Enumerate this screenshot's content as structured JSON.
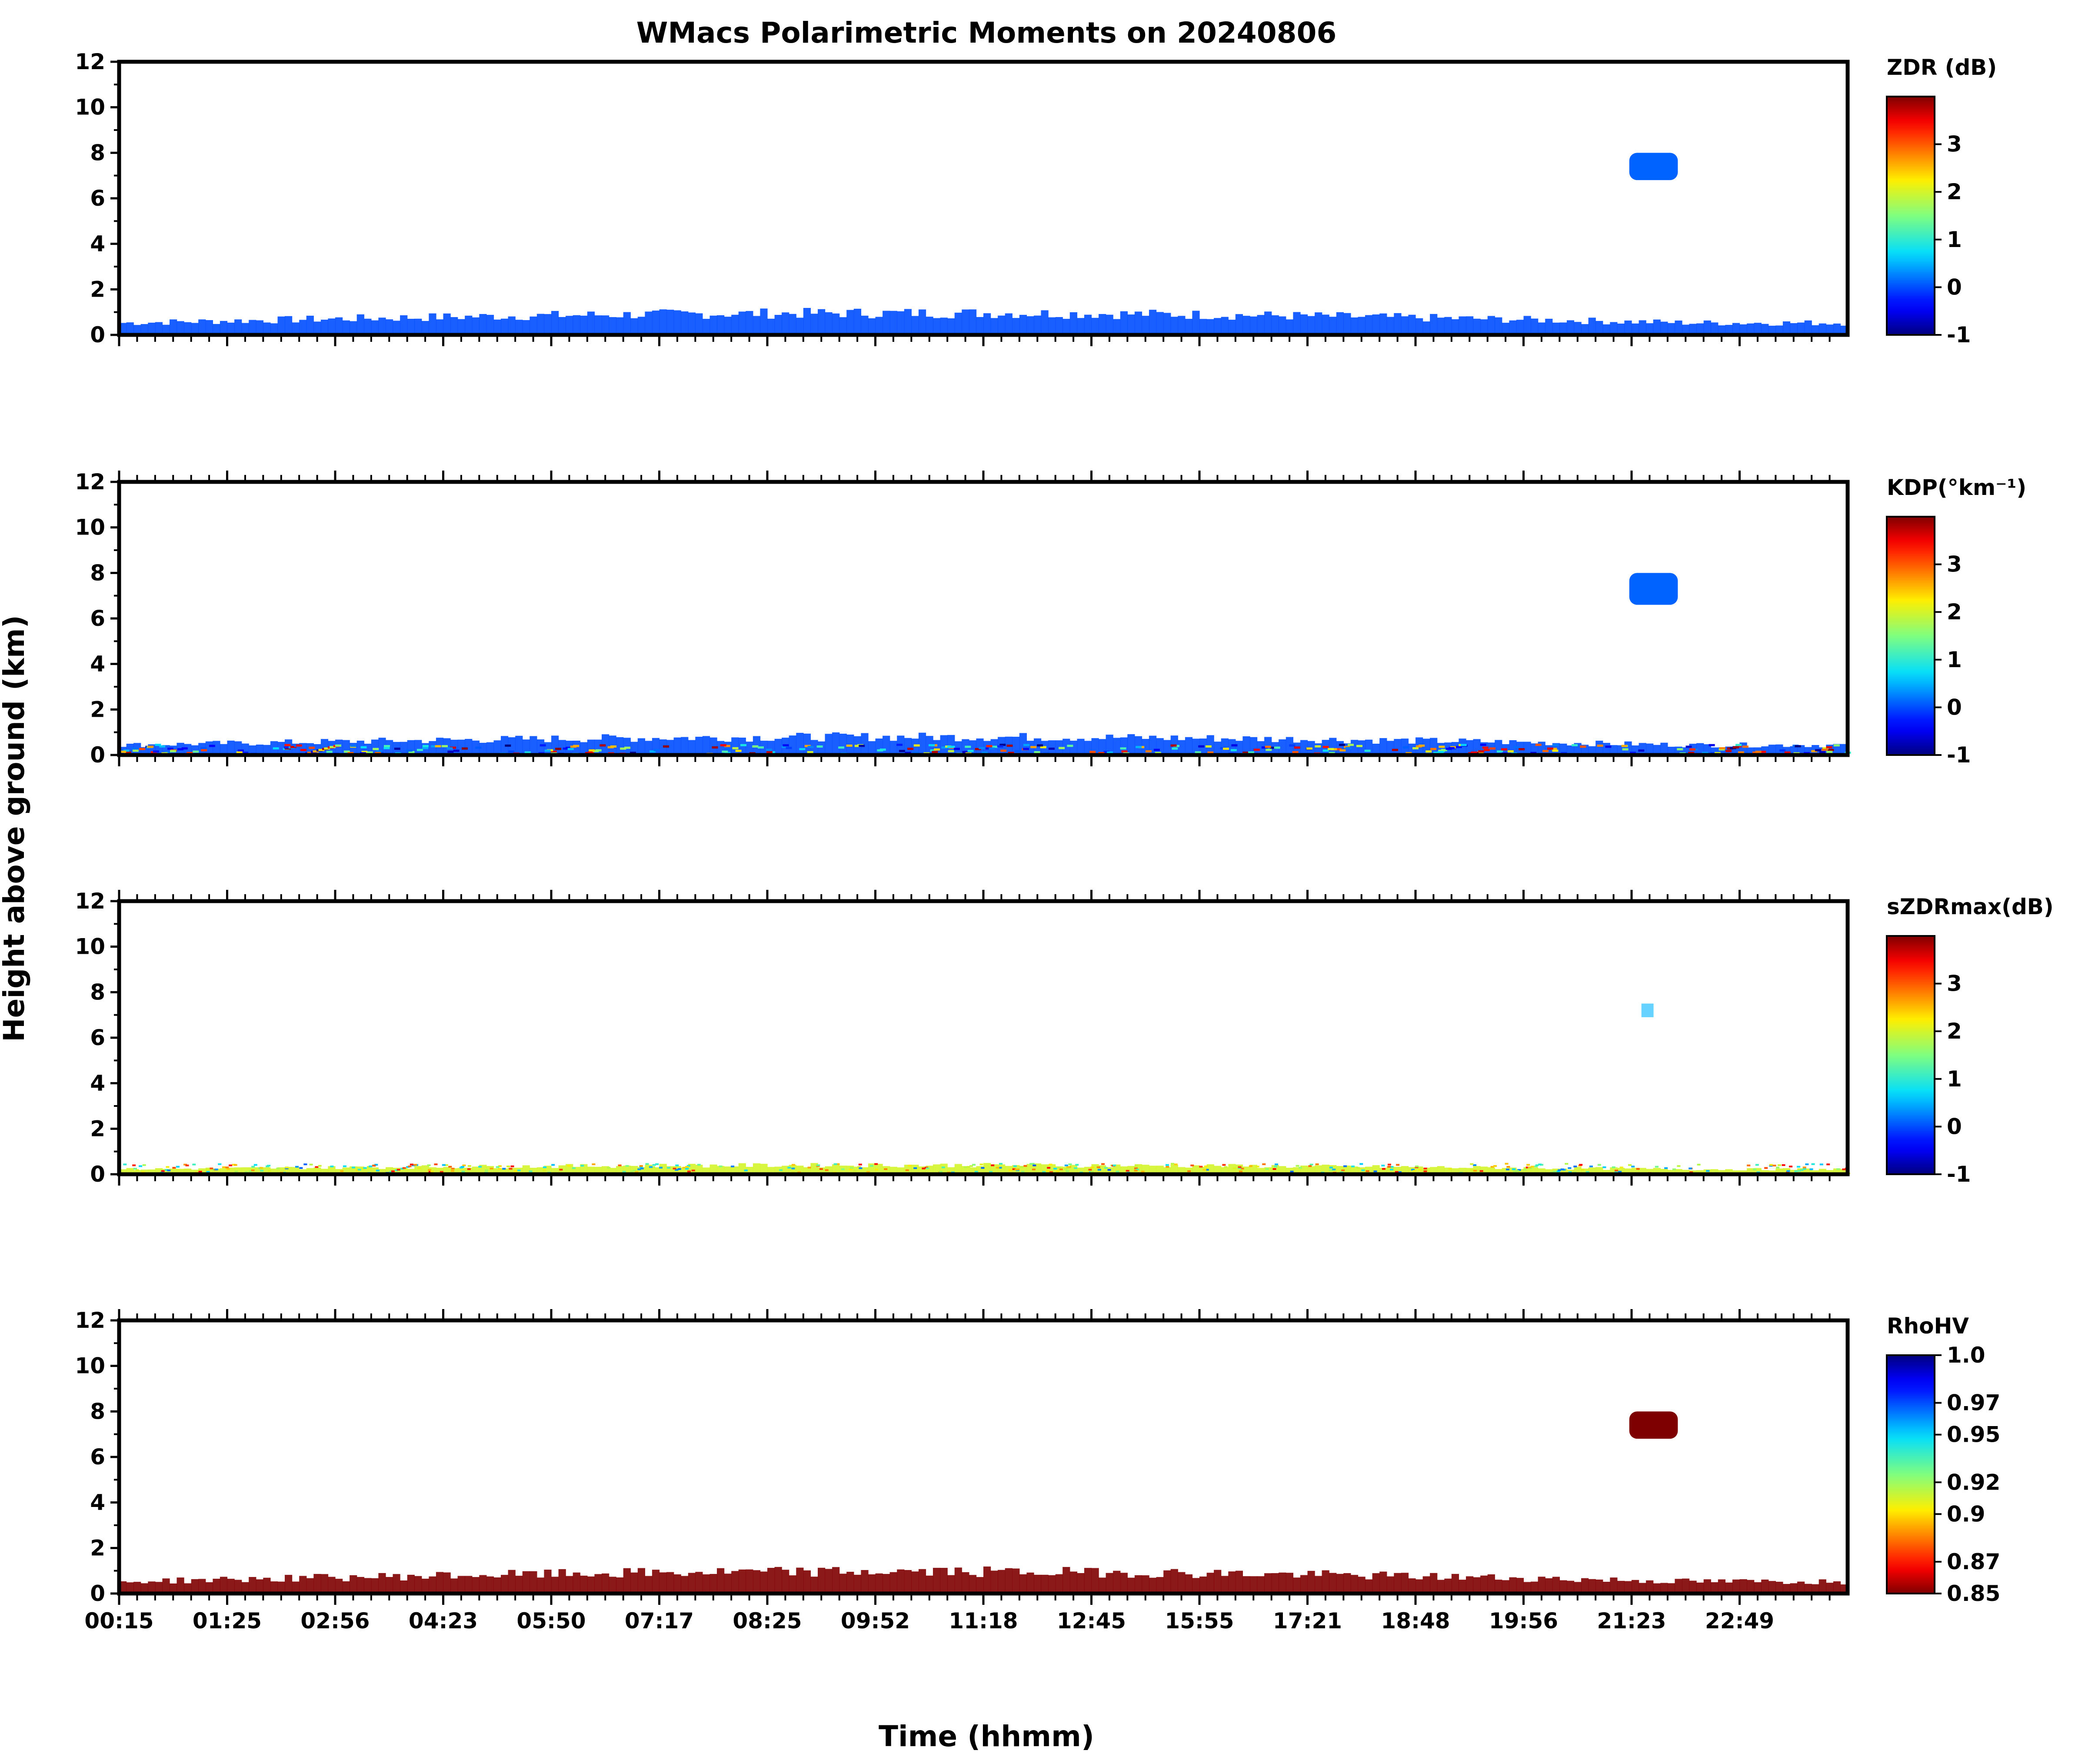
{
  "chart_data": {
    "type": "heatmap",
    "title": "WMacs Polarimetric Moments on 20240806",
    "xlabel": "Time (hhmm)",
    "ylabel": "Height above ground (km)",
    "ylim": [
      0,
      12
    ],
    "yticks": [
      "0",
      "2",
      "4",
      "6",
      "8",
      "10",
      "12"
    ],
    "xticks": [
      "00:15",
      "01:25",
      "02:56",
      "04:23",
      "05:50",
      "07:17",
      "08:25",
      "09:52",
      "11:18",
      "12:45",
      "15:55",
      "17:21",
      "18:48",
      "19:56",
      "21:23",
      "22:49"
    ],
    "panels": [
      {
        "name": "zdr",
        "colorbar_label": "ZDR (dB)",
        "colorbar_ticks": [
          "-1",
          "0",
          "1",
          "2",
          "3"
        ],
        "colorbar_range": [
          -1,
          4
        ],
        "colormap": "jet",
        "features": [
          {
            "kind": "low-layer",
            "height_top_km": 1.2,
            "value": 0.0
          },
          {
            "kind": "cloud",
            "time_range": [
              "21:00",
              "21:40"
            ],
            "height_range_km": [
              6.8,
              8.0
            ],
            "value": 0.1
          }
        ]
      },
      {
        "name": "kdp",
        "colorbar_label": "KDP(°km⁻¹)",
        "colorbar_ticks": [
          "-1",
          "0",
          "1",
          "2",
          "3"
        ],
        "colorbar_range": [
          -1,
          4
        ],
        "colormap": "jet",
        "features": [
          {
            "kind": "low-layer",
            "height_top_km": 1.0,
            "value": 0.0
          },
          {
            "kind": "cloud",
            "time_range": [
              "21:00",
              "21:40"
            ],
            "height_range_km": [
              6.6,
              8.0
            ],
            "value": 0.1
          }
        ]
      },
      {
        "name": "szdrmax",
        "colorbar_label": "sZDRmax(dB)",
        "colorbar_ticks": [
          "-1",
          "0",
          "1",
          "2",
          "3"
        ],
        "colorbar_range": [
          -1,
          4
        ],
        "colormap": "jet",
        "features": [
          {
            "kind": "low-layer",
            "height_top_km": 0.5,
            "value": 2.0
          },
          {
            "kind": "speck",
            "time_range": [
              "21:10",
              "21:20"
            ],
            "height_range_km": [
              6.9,
              7.5
            ],
            "value": 0.5
          }
        ]
      },
      {
        "name": "rhohv",
        "colorbar_label": "RhoHV",
        "colorbar_ticks": [
          "0.85",
          "0.87",
          "0.9",
          "0.92",
          "0.95",
          "0.97",
          "1.0"
        ],
        "colorbar_range": [
          0.85,
          1.0
        ],
        "colormap": "jet_r",
        "features": [
          {
            "kind": "low-layer",
            "height_top_km": 1.2,
            "value": 0.85
          },
          {
            "kind": "cloud",
            "time_range": [
              "21:00",
              "21:40"
            ],
            "height_range_km": [
              6.8,
              8.0
            ],
            "value": 0.85
          }
        ]
      }
    ]
  }
}
